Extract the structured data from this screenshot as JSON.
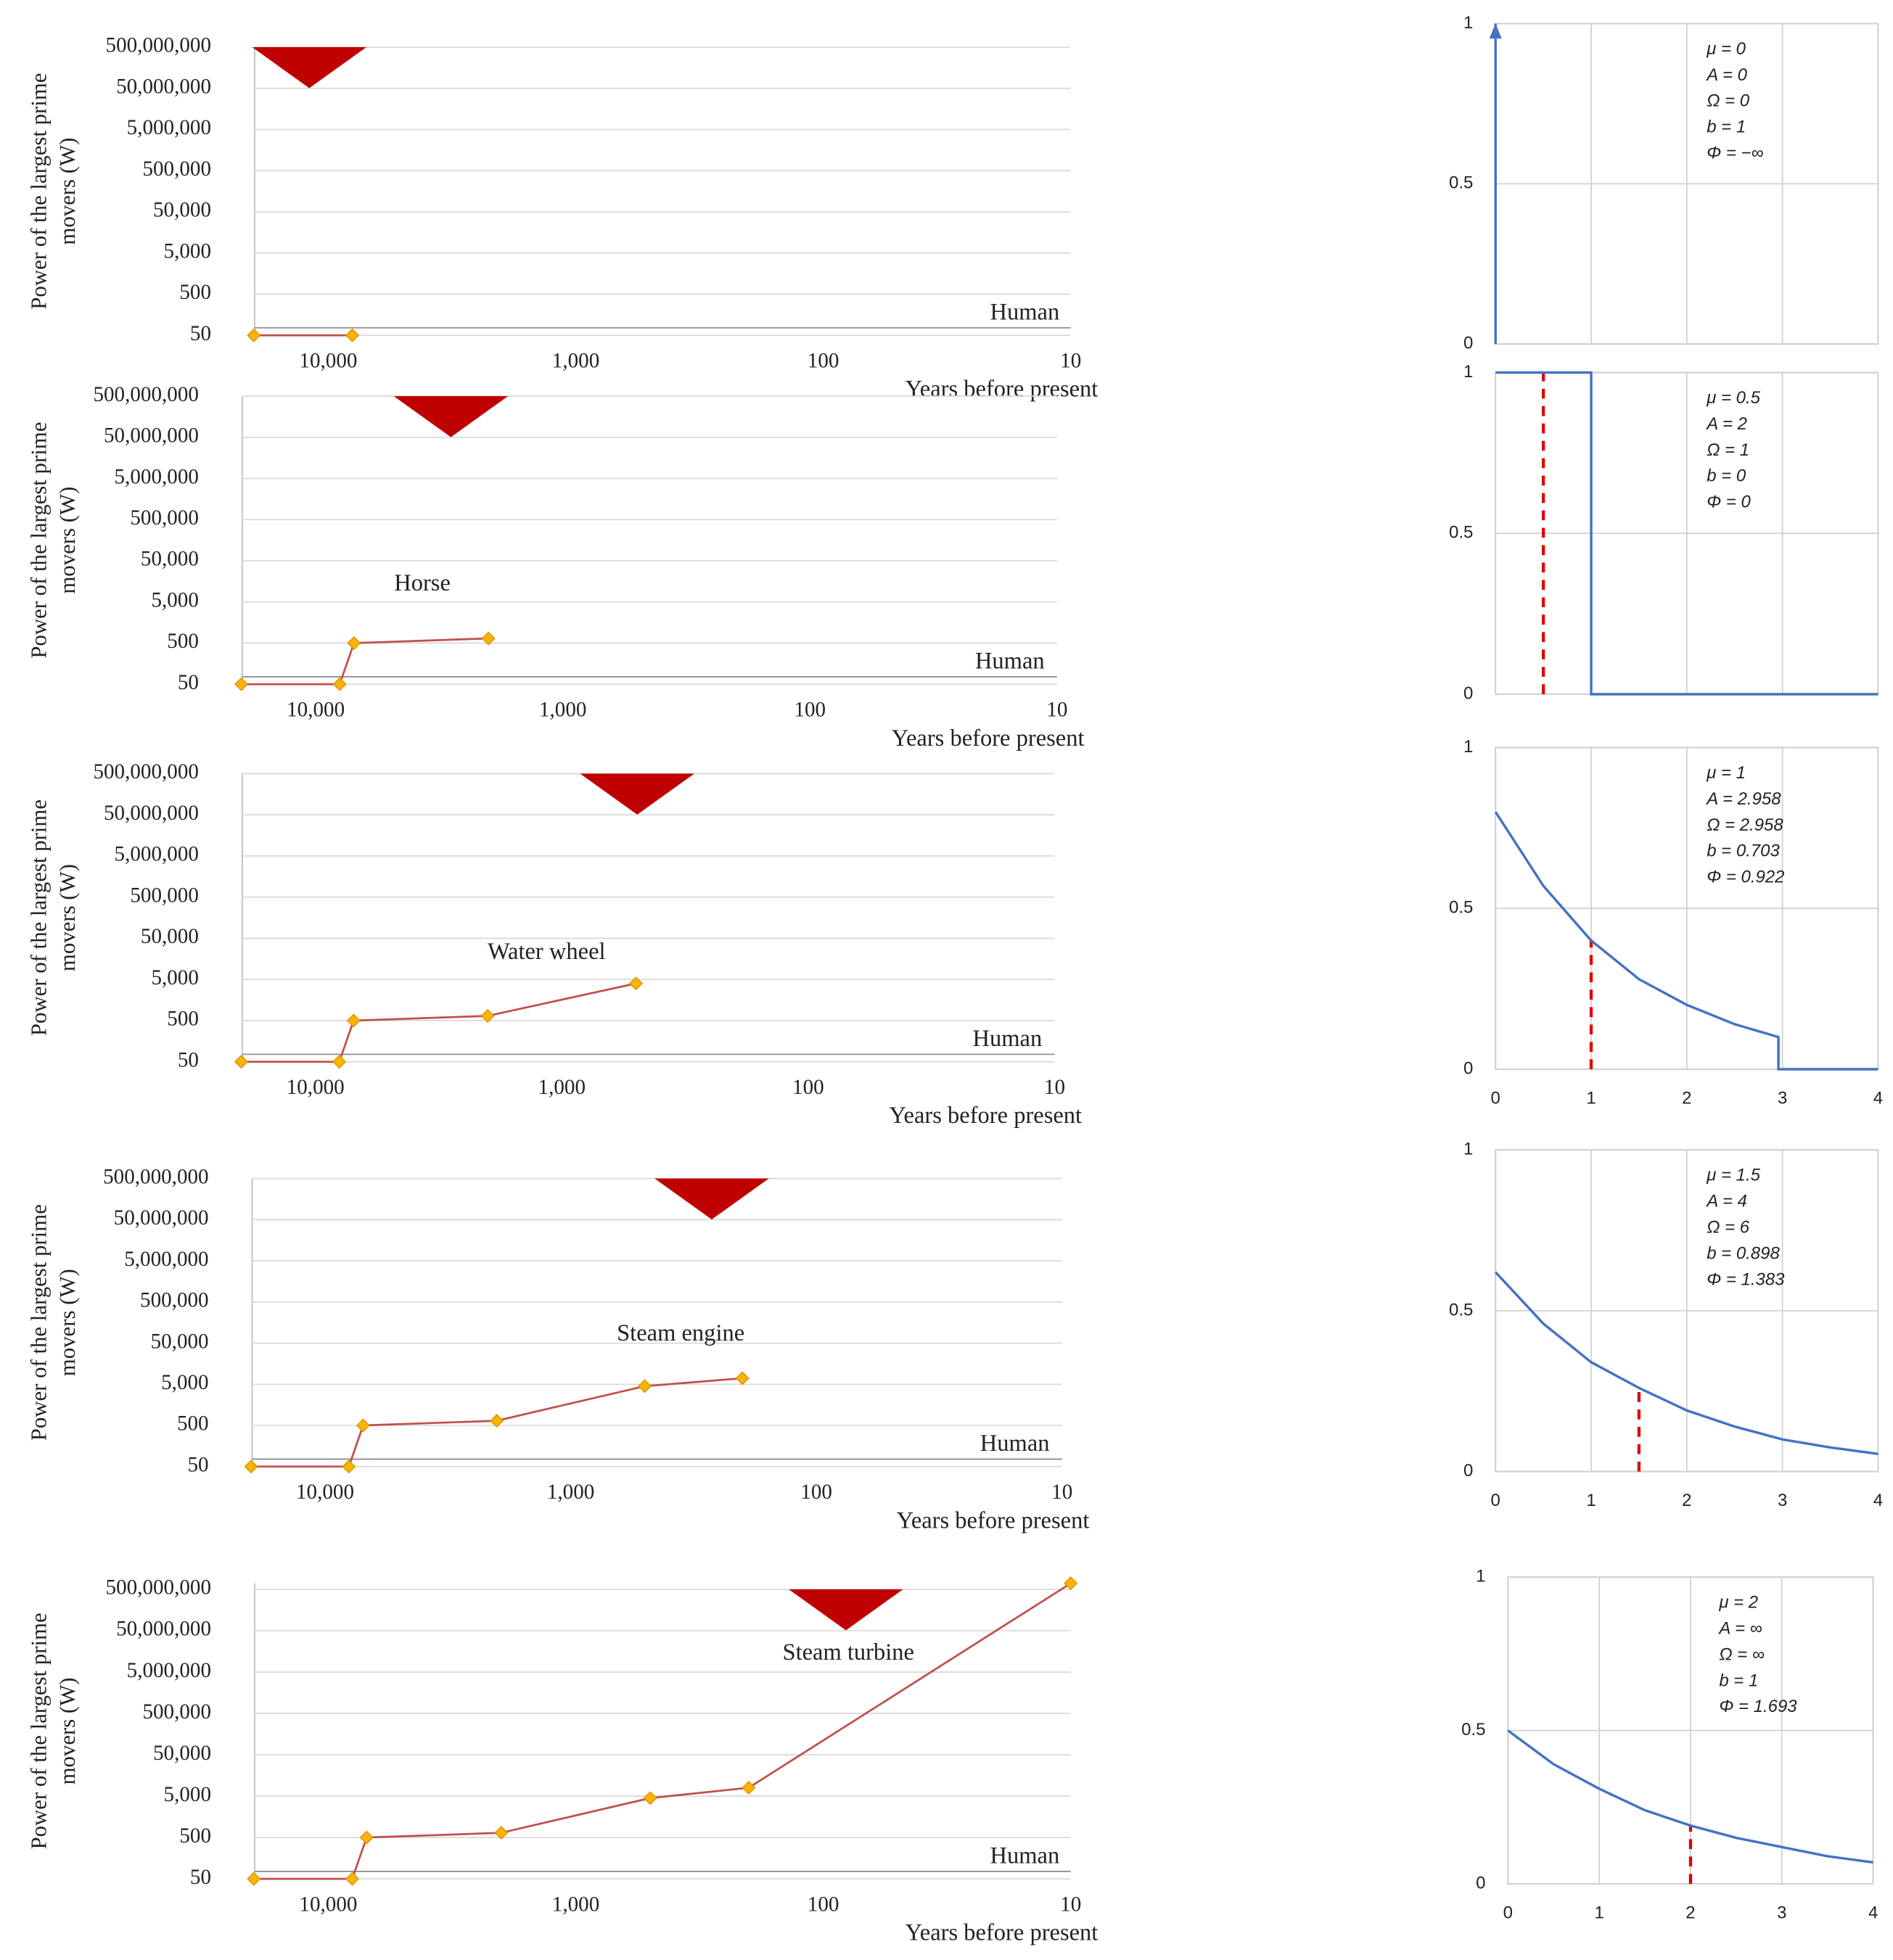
{
  "chart_data": [
    {
      "type": "line",
      "ylabel": [
        "Power of the largest prime",
        "movers (W)"
      ],
      "xlabel": "Years before present",
      "log_x": true,
      "log_y": true,
      "xlim": [
        25000,
        10
      ],
      "xticks": [
        {
          "value": 10000,
          "label": "10,000"
        },
        {
          "value": 1000,
          "label": "1,000"
        },
        100,
        10
      ],
      "ylim": [
        50,
        500000000
      ],
      "yticks": [
        50,
        500,
        {
          "value": 5000,
          "label": "5,000"
        },
        {
          "value": 50000,
          "label": "50,000"
        },
        {
          "value": 500000,
          "label": "500,000"
        },
        {
          "value": 5000000,
          "label": "5,000,000"
        },
        {
          "value": 50000000,
          "label": "50,000,000"
        },
        {
          "value": 500000000,
          "label": "500,000,000"
        }
      ],
      "grid": true,
      "color": "#c0504d",
      "marker_color": "#f7b500",
      "x": [
        20000,
        8000
      ],
      "values": [
        50,
        50
      ],
      "annotations": [
        "Human"
      ]
    },
    {
      "type": "line",
      "ylabel": [
        "Power of the largest prime",
        "movers (W)"
      ],
      "xlabel": "Years before present",
      "log_x": true,
      "log_y": true,
      "xlim": [
        25000,
        10
      ],
      "xticks": [
        {
          "value": 10000,
          "label": "10,000"
        },
        {
          "value": 1000,
          "label": "1,000"
        },
        100,
        10
      ],
      "ylim": [
        50,
        500000000
      ],
      "yticks": [
        50,
        500,
        {
          "value": 5000,
          "label": "5,000"
        },
        {
          "value": 50000,
          "label": "50,000"
        },
        {
          "value": 500000,
          "label": "500,000"
        },
        {
          "value": 5000000,
          "label": "5,000,000"
        },
        {
          "value": 50000000,
          "label": "50,000,000"
        },
        {
          "value": 500000000,
          "label": "500,000,000"
        }
      ],
      "grid": true,
      "color": "#c0504d",
      "marker_color": "#f7b500",
      "x": [
        20000,
        8000,
        7000,
        2000
      ],
      "values": [
        50,
        50,
        500,
        650
      ],
      "annotations": [
        "Human",
        "Horse"
      ]
    },
    {
      "type": "line",
      "ylabel": [
        "Power of the largest prime",
        "movers (W)"
      ],
      "xlabel": "Years before present",
      "log_x": true,
      "log_y": true,
      "xlim": [
        25000,
        10
      ],
      "xticks": [
        {
          "value": 10000,
          "label": "10,000"
        },
        {
          "value": 1000,
          "label": "1,000"
        },
        100,
        10
      ],
      "ylim": [
        50,
        500000000
      ],
      "yticks": [
        50,
        500,
        {
          "value": 5000,
          "label": "5,000"
        },
        {
          "value": 50000,
          "label": "50,000"
        },
        {
          "value": 500000,
          "label": "500,000"
        },
        {
          "value": 5000000,
          "label": "5,000,000"
        },
        {
          "value": 50000000,
          "label": "50,000,000"
        },
        {
          "value": 500000000,
          "label": "500,000,000"
        }
      ],
      "grid": true,
      "color": "#c0504d",
      "marker_color": "#f7b500",
      "x": [
        20000,
        8000,
        7000,
        2000,
        500
      ],
      "values": [
        50,
        50,
        500,
        650,
        4000
      ],
      "annotations": [
        "Human",
        "Water wheel"
      ]
    },
    {
      "type": "line",
      "ylabel": [
        "Power of the largest prime",
        "movers (W)"
      ],
      "xlabel": "Years before present",
      "log_x": true,
      "log_y": true,
      "xlim": [
        25000,
        10
      ],
      "xticks": [
        {
          "value": 10000,
          "label": "10,000"
        },
        {
          "value": 1000,
          "label": "1,000"
        },
        100,
        10
      ],
      "ylim": [
        50,
        500000000
      ],
      "yticks": [
        50,
        500,
        {
          "value": 5000,
          "label": "5,000"
        },
        {
          "value": 50000,
          "label": "50,000"
        },
        {
          "value": 500000,
          "label": "500,000"
        },
        {
          "value": 5000000,
          "label": "5,000,000"
        },
        {
          "value": 50000000,
          "label": "50,000,000"
        },
        {
          "value": 500000000,
          "label": "500,000,000"
        }
      ],
      "grid": true,
      "color": "#c0504d",
      "marker_color": "#f7b500",
      "x": [
        20000,
        8000,
        7000,
        2000,
        500,
        200
      ],
      "values": [
        50,
        50,
        500,
        650,
        4500,
        7000
      ],
      "annotations": [
        "Human",
        "Steam engine"
      ]
    },
    {
      "type": "line",
      "ylabel": [
        "Power of the largest prime",
        "movers (W)"
      ],
      "xlabel": "Years before present",
      "log_x": true,
      "log_y": true,
      "xlim": [
        25000,
        10
      ],
      "xticks": [
        {
          "value": 10000,
          "label": "10,000"
        },
        {
          "value": 1000,
          "label": "1,000"
        },
        100,
        10
      ],
      "ylim": [
        50,
        700000000
      ],
      "yticks": [
        50,
        500,
        {
          "value": 5000,
          "label": "5,000"
        },
        {
          "value": 50000,
          "label": "50,000"
        },
        {
          "value": 500000,
          "label": "500,000"
        },
        {
          "value": 5000000,
          "label": "5,000,000"
        },
        {
          "value": 50000000,
          "label": "50,000,000"
        },
        {
          "value": 500000000,
          "label": "500,000,000"
        }
      ],
      "grid": true,
      "color": "#c0504d",
      "marker_color": "#f7b500",
      "x": [
        20000,
        8000,
        7000,
        2000,
        500,
        200,
        10
      ],
      "values": [
        50,
        50,
        500,
        650,
        4500,
        8000,
        700000000
      ],
      "annotations": [
        "Human",
        "Steam turbine"
      ]
    },
    {
      "type": "line",
      "xlim": [
        0,
        4
      ],
      "ylim": [
        0,
        1
      ],
      "yticks": [
        0,
        0.5,
        1
      ],
      "grid": true,
      "color": "#4472c4",
      "arrow": true,
      "x": [
        0,
        0
      ],
      "values": [
        0,
        1
      ],
      "annotations": [
        "μ = 0",
        "A = 0",
        "Ω = 0",
        "b = 1",
        "Φ = −∞"
      ]
    },
    {
      "type": "line",
      "xlim": [
        0,
        4
      ],
      "ylim": [
        0,
        1
      ],
      "yticks": [
        0,
        0.5,
        1
      ],
      "grid": true,
      "color": "#4472c4",
      "x": [
        0,
        1,
        1,
        4
      ],
      "values": [
        1,
        1,
        0,
        0
      ],
      "reference_line": {
        "x": 0.5,
        "y": 1,
        "color": "#e00000"
      },
      "annotations": [
        "μ = 0.5",
        "A = 2",
        "Ω = 1",
        "b = 0",
        "Φ = 0"
      ]
    },
    {
      "type": "line",
      "xlim": [
        0,
        4
      ],
      "ylim": [
        0,
        1
      ],
      "xticks": [
        0,
        1,
        2,
        3,
        4
      ],
      "yticks": [
        0,
        0.5,
        1
      ],
      "grid": true,
      "color": "#4472c4",
      "x": [
        0,
        0.5,
        1,
        1.5,
        2,
        2.5,
        2.958,
        2.958,
        4
      ],
      "values": [
        0.8,
        0.57,
        0.4,
        0.28,
        0.2,
        0.14,
        0.1,
        0,
        0
      ],
      "reference_line": {
        "x": 1,
        "y": 0.4,
        "color": "#e00000"
      },
      "annotations": [
        "μ = 1",
        "A = 2.958",
        "Ω = 2.958",
        "b = 0.703",
        "Φ = 0.922"
      ]
    },
    {
      "type": "line",
      "xlim": [
        0,
        4
      ],
      "ylim": [
        0,
        1
      ],
      "xticks": [
        0,
        1,
        2,
        3,
        4
      ],
      "yticks": [
        0,
        0.5,
        1
      ],
      "grid": true,
      "color": "#4472c4",
      "x": [
        0,
        0.5,
        1,
        1.5,
        2,
        2.5,
        3,
        3.5,
        4
      ],
      "values": [
        0.62,
        0.46,
        0.34,
        0.26,
        0.19,
        0.14,
        0.1,
        0.075,
        0.055
      ],
      "reference_line": {
        "x": 1.5,
        "y": 0.26,
        "color": "#e00000"
      },
      "annotations": [
        "μ = 1.5",
        "A = 4",
        "Ω = 6",
        "b = 0.898",
        "Φ = 1.383"
      ]
    },
    {
      "type": "line",
      "xlim": [
        0,
        4
      ],
      "ylim": [
        0,
        1
      ],
      "xticks": [
        0,
        1,
        2,
        3,
        4
      ],
      "yticks": [
        0,
        0.5,
        1
      ],
      "grid": true,
      "color": "#4472c4",
      "x": [
        0,
        0.5,
        1,
        1.5,
        2,
        2.5,
        3,
        3.5,
        4
      ],
      "values": [
        0.5,
        0.39,
        0.31,
        0.24,
        0.19,
        0.15,
        0.12,
        0.09,
        0.07
      ],
      "reference_line": {
        "x": 2,
        "y": 0.19,
        "color": "#e00000"
      },
      "annotations": [
        "μ = 2",
        "A = ∞",
        "Ω = ∞",
        "b = 1",
        "Φ = 1.693"
      ]
    }
  ]
}
